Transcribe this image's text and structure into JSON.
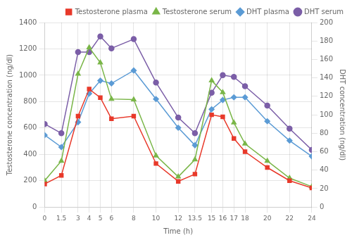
{
  "chart_data": {
    "type": "line",
    "x": [
      0,
      1.5,
      3,
      4,
      5,
      6,
      8,
      10,
      12,
      13.5,
      15,
      16,
      17,
      18,
      20,
      22,
      24
    ],
    "series": [
      {
        "name": "Testosterone plasma",
        "color": "#e8392a",
        "marker": "square",
        "values": [
          175,
          240,
          690,
          895,
          830,
          670,
          690,
          330,
          195,
          250,
          700,
          685,
          520,
          420,
          300,
          200,
          145
        ]
      },
      {
        "name": "Testosterone serum",
        "color": "#7ab648",
        "marker": "triangle",
        "values": [
          200,
          350,
          1010,
          1210,
          1095,
          820,
          815,
          390,
          230,
          360,
          960,
          870,
          640,
          480,
          350,
          220,
          155
        ]
      },
      {
        "name": "DHT plasma",
        "color": "#5b9bd5",
        "marker": "diamond",
        "axis": "y2",
        "values": [
          78,
          65,
          92,
          123,
          137,
          134,
          148,
          117,
          86,
          67,
          106,
          116,
          119,
          119,
          93,
          72,
          55
        ]
      },
      {
        "name": "DHT serum",
        "color": "#7b5ea7",
        "marker": "circle",
        "axis": "y2",
        "values": [
          90,
          80,
          168,
          168,
          185,
          172,
          182,
          135,
          97,
          80,
          124,
          143,
          141,
          131,
          110,
          85,
          62
        ]
      }
    ],
    "x_label": "Time (h)",
    "y_label": "Testosterone concentration (ng/dl)",
    "y2_label": "DHT concentration (ng/dl)",
    "xlim": [
      0,
      24
    ],
    "xticks": [
      0,
      1.5,
      3,
      4,
      5,
      6,
      8,
      10,
      12,
      13.5,
      15,
      16,
      17,
      18,
      20,
      22,
      24
    ],
    "ylim": [
      0,
      1400
    ],
    "yticks": [
      0,
      200,
      400,
      600,
      800,
      1000,
      1200,
      1400
    ],
    "y2lim": [
      0,
      200
    ],
    "y2ticks": [
      0,
      20,
      40,
      60,
      80,
      100,
      120,
      140,
      160,
      180,
      200
    ],
    "grid": true,
    "legend": "upper right"
  }
}
